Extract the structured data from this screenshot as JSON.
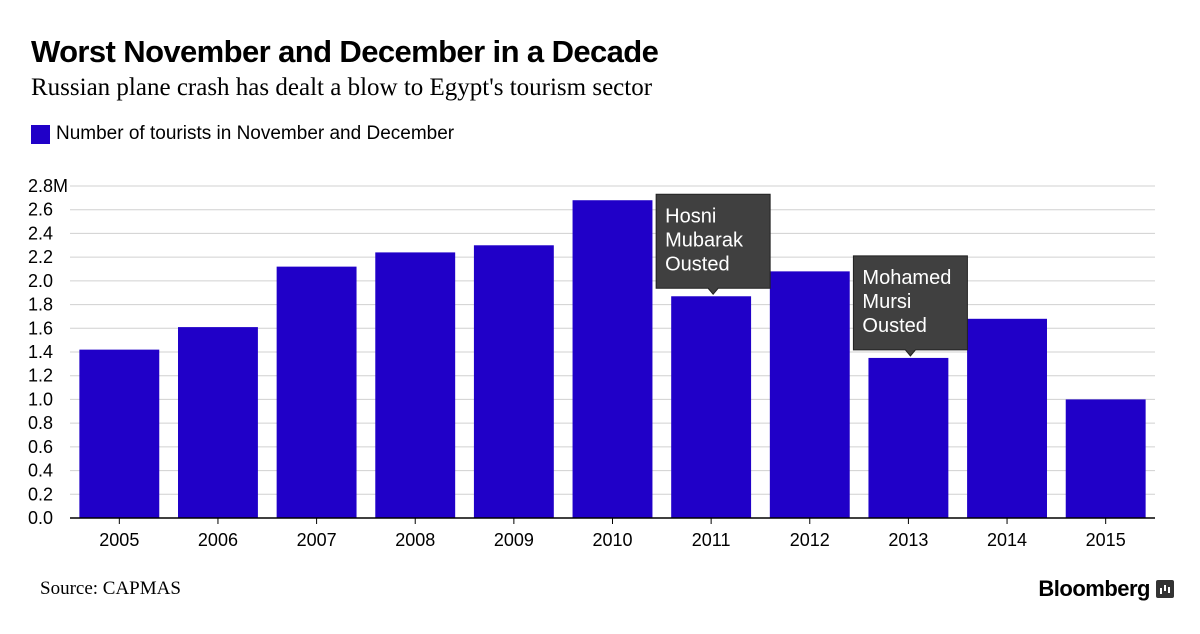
{
  "header": {
    "title": "Worst November and December in a Decade",
    "subtitle": "Russian plane crash has dealt a blow to Egypt's tourism sector"
  },
  "footer": {
    "source": "Source: CAPMAS",
    "brand": "Bloomberg",
    "brand_icon": "bloomberg-terminal-icon"
  },
  "colors": {
    "bar": "#2000c8",
    "grid": "#d0d0d0",
    "axis": "#000000",
    "annotation_bg": "#404040",
    "annotation_text": "#ffffff"
  },
  "chart_data": {
    "type": "bar",
    "categories": [
      "2005",
      "2006",
      "2007",
      "2008",
      "2009",
      "2010",
      "2011",
      "2012",
      "2013",
      "2014",
      "2015"
    ],
    "series": [
      {
        "name": "Number of tourists in November and December",
        "values": [
          1.42,
          1.61,
          2.12,
          2.24,
          2.3,
          2.68,
          1.87,
          2.08,
          1.35,
          1.68,
          1.0
        ]
      }
    ],
    "y_ticks": [
      "0.0",
      "0.2",
      "0.4",
      "0.6",
      "0.8",
      "1.0",
      "1.2",
      "1.4",
      "1.6",
      "1.8",
      "2.0",
      "2.2",
      "2.4",
      "2.6",
      "2.8M"
    ],
    "ylim": [
      0,
      2.8
    ],
    "grid": true,
    "legend_position": "top-left",
    "annotations": [
      {
        "category": "2011",
        "lines": [
          "Hosni",
          "Mubarak",
          "Ousted"
        ]
      },
      {
        "category": "2013",
        "lines": [
          "Mohamed",
          "Mursi",
          "Ousted"
        ]
      }
    ]
  }
}
